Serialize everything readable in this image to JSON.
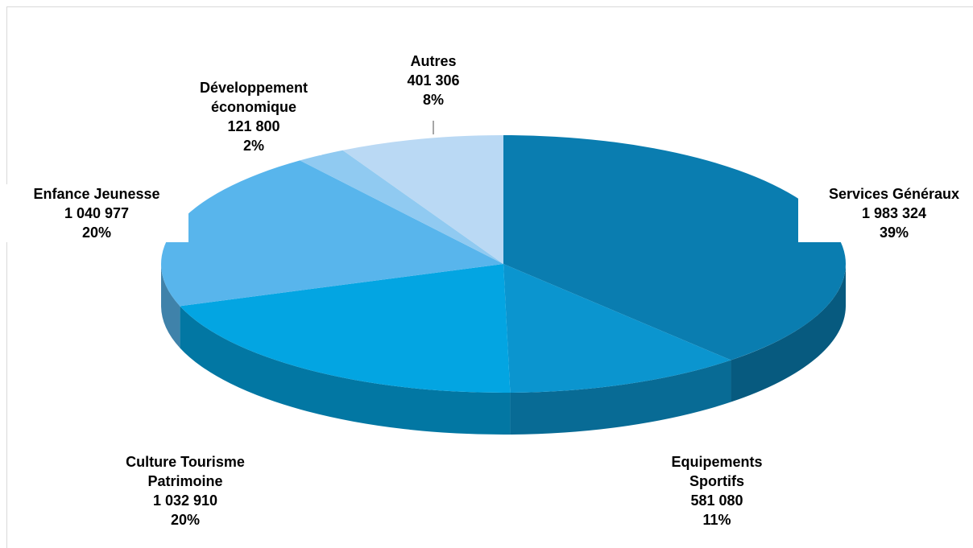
{
  "chart_data": {
    "type": "pie",
    "categories": [
      "Services Généraux",
      "Equipements Sportifs",
      "Culture Tourisme Patrimoine",
      "Enfance Jeunesse",
      "Développement économique",
      "Autres"
    ],
    "values": [
      1983324,
      581080,
      1032910,
      1040977,
      121800,
      401306
    ],
    "value_labels": [
      "1 983 324",
      "581 080",
      "1 032 910",
      "1 040 977",
      "121 800",
      "401 306"
    ],
    "percents": [
      39,
      11,
      20,
      20,
      2,
      8
    ],
    "percent_labels": [
      "39%",
      "11%",
      "20%",
      "20%",
      "2%",
      "8%"
    ],
    "colors": [
      "#0a7db0",
      "#0b95cf",
      "#03a5e2",
      "#58b5ec",
      "#90caf1",
      "#bad9f4"
    ]
  }
}
